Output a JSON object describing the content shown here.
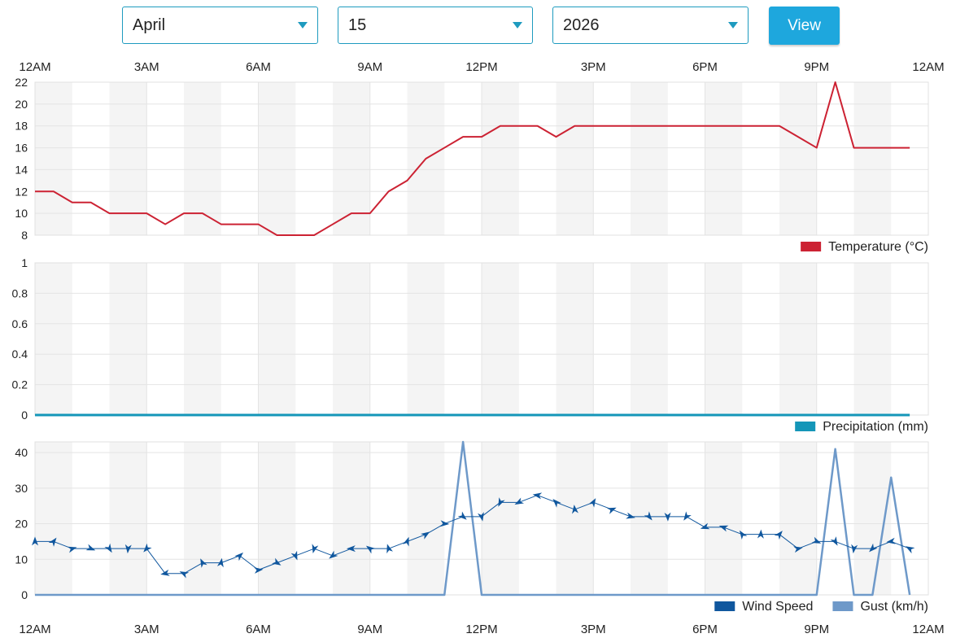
{
  "controls": {
    "month": "April",
    "day": "15",
    "year": "2026",
    "view_label": "View"
  },
  "x_axis_labels": [
    "12AM",
    "3AM",
    "6AM",
    "9AM",
    "12PM",
    "3PM",
    "6PM",
    "9PM",
    "12AM"
  ],
  "colors": {
    "temperature": "#cc2233",
    "precipitation": "#1496b8",
    "wind_speed": "#10579e",
    "gust": "#6e99c9",
    "band": "#f4f4f4",
    "grid": "#e4e4e4"
  },
  "legend": {
    "temperature": "Temperature (°C)",
    "precipitation": "Precipitation (mm)",
    "wind_speed": "Wind Speed",
    "gust": "Gust (km/h)"
  },
  "chart_data": [
    {
      "type": "line",
      "x_unit": "hours",
      "xlim": [
        0,
        24
      ],
      "ylim": [
        8,
        22
      ],
      "y_ticks": [
        "8",
        "10",
        "12",
        "14",
        "16",
        "18",
        "20",
        "22"
      ],
      "series": [
        {
          "name": "Temperature (°C)",
          "x": [
            0,
            0.5,
            1,
            1.5,
            2,
            2.5,
            3,
            3.5,
            4,
            4.5,
            5,
            5.5,
            6,
            6.5,
            7,
            7.5,
            8,
            8.5,
            9,
            9.5,
            10,
            10.5,
            11,
            11.5,
            12,
            12.5,
            13,
            13.5,
            14,
            14.5,
            15,
            15.5,
            16,
            16.5,
            17,
            17.5,
            18,
            18.5,
            19,
            19.5,
            20,
            20.5,
            21,
            21.5,
            22,
            22.5,
            23,
            23.5
          ],
          "values": [
            12,
            12,
            11,
            11,
            10,
            10,
            10,
            9,
            10,
            10,
            9,
            9,
            9,
            8,
            8,
            8,
            9,
            10,
            10,
            12,
            13,
            15,
            16,
            17,
            17,
            18,
            18,
            18,
            17,
            18,
            18,
            18,
            18,
            18,
            18,
            18,
            18,
            18,
            18,
            18,
            18,
            17,
            16,
            22,
            16,
            16,
            16,
            16
          ]
        }
      ]
    },
    {
      "type": "area",
      "x_unit": "hours",
      "xlim": [
        0,
        24
      ],
      "ylim": [
        0,
        1
      ],
      "y_ticks": [
        "0",
        "0.2",
        "0.4",
        "0.6",
        "0.8",
        "1"
      ],
      "series": [
        {
          "name": "Precipitation (mm)",
          "x": [
            0,
            23.5
          ],
          "values": [
            0,
            0
          ]
        }
      ]
    },
    {
      "type": "line",
      "x_unit": "hours",
      "xlim": [
        0,
        24
      ],
      "ylim": [
        0,
        43
      ],
      "y_ticks": [
        "0",
        "10",
        "20",
        "30",
        "40"
      ],
      "series": [
        {
          "name": "Wind Speed",
          "x": [
            0,
            0.5,
            1,
            1.5,
            2,
            2.5,
            3,
            3.5,
            4,
            4.5,
            5,
            5.5,
            6,
            6.5,
            7,
            7.5,
            8,
            8.5,
            9,
            9.5,
            10,
            10.5,
            11,
            11.5,
            12,
            12.5,
            13,
            13.5,
            14,
            14.5,
            15,
            15.5,
            16,
            16.5,
            17,
            17.5,
            18,
            18.5,
            19,
            19.5,
            20,
            20.5,
            21,
            21.5,
            22,
            22.5,
            23,
            23.5
          ],
          "values": [
            15,
            15,
            13,
            13,
            13,
            13,
            13,
            6,
            6,
            9,
            9,
            11,
            7,
            9,
            11,
            13,
            11,
            13,
            13,
            13,
            15,
            17,
            20,
            22,
            22,
            26,
            26,
            28,
            26,
            24,
            26,
            24,
            22,
            22,
            22,
            22,
            19,
            19,
            17,
            17,
            17,
            13,
            15,
            15,
            13,
            13,
            15,
            13
          ]
        },
        {
          "name": "Gust (km/h)",
          "x": [
            0,
            11,
            11.5,
            12,
            21,
            21.5,
            22,
            22.5,
            23,
            23.5
          ],
          "values": [
            0,
            0,
            43,
            0,
            0,
            41,
            0,
            0,
            33,
            0
          ]
        }
      ]
    }
  ]
}
